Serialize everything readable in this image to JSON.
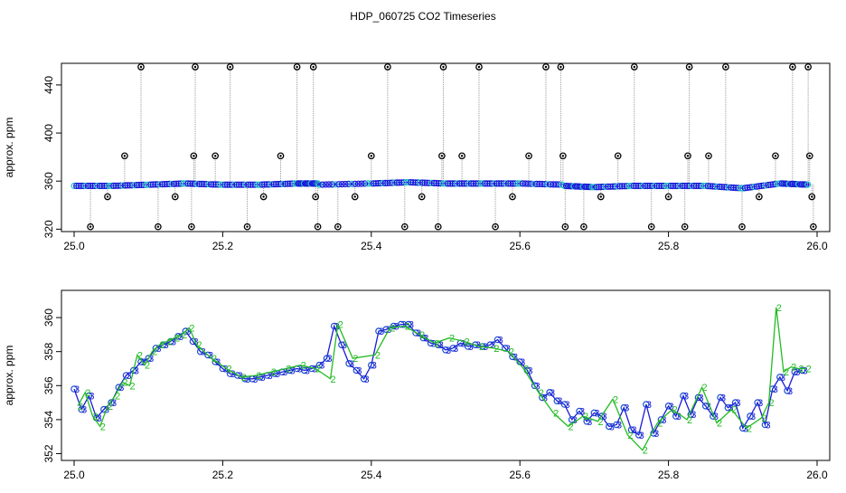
{
  "title": "HDP_060725  CO2 Timeseries",
  "chart_data": [
    {
      "type": "scatter",
      "xlabel": "",
      "ylabel": "approx. ppm",
      "xlim": [
        25.0,
        26.0
      ],
      "ylim": [
        318,
        458
      ],
      "xticks": [
        "25.0",
        "25.2",
        "25.4",
        "25.6",
        "25.8",
        "26.0"
      ],
      "yticks": [
        "320",
        "360",
        "400",
        "440"
      ],
      "baseline_segments": [
        {
          "x": [
            25.0,
            25.05,
            25.1,
            25.15,
            25.2,
            25.25,
            25.3,
            25.33
          ],
          "y": [
            356,
            356,
            357,
            358,
            357,
            357,
            358,
            358
          ]
        },
        {
          "x": [
            25.33,
            25.4,
            25.45,
            25.5,
            25.55,
            25.6,
            25.66
          ],
          "y": [
            357,
            358,
            359,
            358,
            358,
            358,
            357
          ]
        },
        {
          "x": [
            25.66,
            25.7,
            25.75,
            25.8,
            25.85,
            25.9,
            25.95,
            25.99
          ],
          "y": [
            356,
            355,
            356,
            356,
            356,
            354,
            358,
            357
          ]
        }
      ],
      "outlier_points": [
        {
          "x": 25.022,
          "y": 322
        },
        {
          "x": 25.045,
          "y": 347
        },
        {
          "x": 25.068,
          "y": 381
        },
        {
          "x": 25.09,
          "y": 455
        },
        {
          "x": 25.113,
          "y": 322
        },
        {
          "x": 25.136,
          "y": 347
        },
        {
          "x": 25.158,
          "y": 322
        },
        {
          "x": 25.161,
          "y": 381
        },
        {
          "x": 25.163,
          "y": 455
        },
        {
          "x": 25.19,
          "y": 381
        },
        {
          "x": 25.21,
          "y": 455
        },
        {
          "x": 25.233,
          "y": 322
        },
        {
          "x": 25.255,
          "y": 347
        },
        {
          "x": 25.278,
          "y": 381
        },
        {
          "x": 25.3,
          "y": 455
        },
        {
          "x": 25.322,
          "y": 455
        },
        {
          "x": 25.325,
          "y": 347
        },
        {
          "x": 25.328,
          "y": 322
        },
        {
          "x": 25.355,
          "y": 322
        },
        {
          "x": 25.378,
          "y": 347
        },
        {
          "x": 25.4,
          "y": 381
        },
        {
          "x": 25.422,
          "y": 455
        },
        {
          "x": 25.445,
          "y": 322
        },
        {
          "x": 25.468,
          "y": 347
        },
        {
          "x": 25.49,
          "y": 322
        },
        {
          "x": 25.495,
          "y": 381
        },
        {
          "x": 25.497,
          "y": 455
        },
        {
          "x": 25.522,
          "y": 381
        },
        {
          "x": 25.545,
          "y": 455
        },
        {
          "x": 25.567,
          "y": 322
        },
        {
          "x": 25.59,
          "y": 347
        },
        {
          "x": 25.612,
          "y": 381
        },
        {
          "x": 25.635,
          "y": 455
        },
        {
          "x": 25.655,
          "y": 455
        },
        {
          "x": 25.658,
          "y": 381
        },
        {
          "x": 25.661,
          "y": 322
        },
        {
          "x": 25.686,
          "y": 322
        },
        {
          "x": 25.709,
          "y": 347
        },
        {
          "x": 25.732,
          "y": 381
        },
        {
          "x": 25.754,
          "y": 455
        },
        {
          "x": 25.777,
          "y": 322
        },
        {
          "x": 25.8,
          "y": 347
        },
        {
          "x": 25.822,
          "y": 322
        },
        {
          "x": 25.826,
          "y": 381
        },
        {
          "x": 25.828,
          "y": 455
        },
        {
          "x": 25.854,
          "y": 381
        },
        {
          "x": 25.877,
          "y": 455
        },
        {
          "x": 25.899,
          "y": 322
        },
        {
          "x": 25.922,
          "y": 347
        },
        {
          "x": 25.944,
          "y": 381
        },
        {
          "x": 25.967,
          "y": 455
        },
        {
          "x": 25.988,
          "y": 455
        },
        {
          "x": 25.99,
          "y": 381
        },
        {
          "x": 25.993,
          "y": 347
        },
        {
          "x": 25.995,
          "y": 322
        }
      ],
      "grid": false,
      "legend": "none"
    },
    {
      "type": "line",
      "xlabel": "",
      "ylabel": "approx. ppm",
      "xlim": [
        25.0,
        26.0
      ],
      "ylim": [
        351.6,
        361.6
      ],
      "xticks": [
        "25.0",
        "25.2",
        "25.4",
        "25.6",
        "25.8",
        "26.0"
      ],
      "yticks": [
        "352",
        "354",
        "356",
        "358",
        "360"
      ],
      "series": [
        {
          "marker": "3",
          "x": [
            25.0,
            25.01,
            25.02,
            25.03,
            25.04,
            25.05,
            25.06,
            25.07,
            25.08,
            25.09,
            25.1,
            25.11,
            25.12,
            25.13,
            25.14,
            25.15,
            25.16,
            25.17,
            25.18,
            25.19,
            25.2,
            25.21,
            25.22,
            25.23,
            25.24,
            25.25,
            25.26,
            25.27,
            25.28,
            25.29,
            25.3,
            25.31,
            25.32,
            25.33,
            25.34,
            25.35,
            25.36,
            25.37,
            25.38,
            25.39,
            25.4,
            25.41,
            25.42,
            25.43,
            25.44,
            25.45,
            25.46,
            25.47,
            25.48,
            25.49,
            25.5,
            25.51,
            25.52,
            25.53,
            25.54,
            25.55,
            25.56,
            25.57,
            25.58,
            25.59,
            25.6,
            25.61,
            25.62,
            25.63,
            25.64,
            25.65,
            25.66,
            25.67,
            25.68,
            25.69,
            25.7,
            25.71,
            25.72,
            25.73,
            25.74,
            25.75,
            25.76,
            25.77,
            25.78,
            25.79,
            25.8,
            25.81,
            25.82,
            25.83,
            25.84,
            25.85,
            25.86,
            25.87,
            25.88,
            25.89,
            25.9,
            25.91,
            25.92,
            25.93,
            25.94,
            25.95,
            25.96,
            25.97,
            25.98
          ],
          "y": [
            355.8,
            354.6,
            355.4,
            354.1,
            354.6,
            355.0,
            355.9,
            356.6,
            356.9,
            357.4,
            357.6,
            358.2,
            358.4,
            358.6,
            358.9,
            359.2,
            358.6,
            358.0,
            357.8,
            357.4,
            357.0,
            356.7,
            356.6,
            356.4,
            356.4,
            356.5,
            356.6,
            356.7,
            356.8,
            356.9,
            357.0,
            356.9,
            357.0,
            357.2,
            357.6,
            359.5,
            358.4,
            357.3,
            356.9,
            356.4,
            357.2,
            359.2,
            359.3,
            359.5,
            359.6,
            359.6,
            359.1,
            358.8,
            358.5,
            358.4,
            358.1,
            358.2,
            358.5,
            358.3,
            358.4,
            358.3,
            358.4,
            358.7,
            358.2,
            357.7,
            357.4,
            356.9,
            356.0,
            355.3,
            355.6,
            355.1,
            354.9,
            354.0,
            354.5,
            353.9,
            354.4,
            354.2,
            353.6,
            353.7,
            354.7,
            353.4,
            353.1,
            354.9,
            353.2,
            354.0,
            354.8,
            354.2,
            355.4,
            354.3,
            355.3,
            354.8,
            354.2,
            355.3,
            354.7,
            355.0,
            353.5,
            354.2,
            355.0,
            353.7,
            355.8,
            356.5,
            355.7,
            356.8,
            356.9
          ]
        },
        {
          "marker": "2",
          "x": [
            25.005,
            25.015,
            25.025,
            25.035,
            25.045,
            25.055,
            25.065,
            25.075,
            25.085,
            25.095,
            25.105,
            25.115,
            25.125,
            25.135,
            25.145,
            25.155,
            25.165,
            25.185,
            25.205,
            25.225,
            25.245,
            25.265,
            25.285,
            25.305,
            25.325,
            25.345,
            25.355,
            25.375,
            25.405,
            25.425,
            25.445,
            25.465,
            25.485,
            25.505,
            25.525,
            25.545,
            25.565,
            25.585,
            25.605,
            25.625,
            25.645,
            25.665,
            25.685,
            25.705,
            25.725,
            25.745,
            25.765,
            25.785,
            25.805,
            25.825,
            25.845,
            25.865,
            25.885,
            25.905,
            25.925,
            25.935,
            25.945,
            25.955,
            25.965,
            25.975,
            25.985
          ],
          "y": [
            354.8,
            355.6,
            354.2,
            353.6,
            354.8,
            355.4,
            356.2,
            356.0,
            357.8,
            357.2,
            358.0,
            358.4,
            358.6,
            358.8,
            359.0,
            359.4,
            358.4,
            357.6,
            357.0,
            356.5,
            356.6,
            356.8,
            357.0,
            357.2,
            357.0,
            356.4,
            359.6,
            357.6,
            357.8,
            359.4,
            359.5,
            359.0,
            358.5,
            358.8,
            358.6,
            358.3,
            358.2,
            358.0,
            357.0,
            355.6,
            354.4,
            353.6,
            354.2,
            353.9,
            355.2,
            353.1,
            352.2,
            353.8,
            354.6,
            354.0,
            355.9,
            353.8,
            354.6,
            353.5,
            354.1,
            355.0,
            360.6,
            356.8,
            357.1,
            357.0,
            357.0
          ]
        }
      ],
      "grid": false,
      "legend": "none"
    }
  ]
}
